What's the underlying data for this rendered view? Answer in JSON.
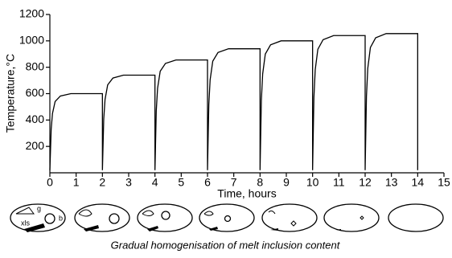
{
  "chart_data": {
    "type": "line",
    "xlabel": "Time, hours",
    "ylabel": "Temperature,°C",
    "x": [
      0,
      0.05,
      0.1,
      0.2,
      0.4,
      0.8,
      2,
      2,
      2.05,
      2.1,
      2.2,
      2.4,
      2.8,
      4,
      4,
      4.05,
      4.1,
      4.2,
      4.4,
      4.8,
      6,
      6,
      6.05,
      6.1,
      6.2,
      6.4,
      6.8,
      8,
      8,
      8.05,
      8.1,
      8.2,
      8.4,
      8.8,
      10,
      10,
      10.05,
      10.1,
      10.2,
      10.4,
      10.8,
      12,
      12,
      12.05,
      12.1,
      12.2,
      12.4,
      12.8,
      14,
      14
    ],
    "series": [
      {
        "color": "#000000",
        "values": [
          20,
          330,
          450,
          540,
          582,
          600,
          600,
          20,
          407,
          555,
          666,
          718,
          740,
          740,
          20,
          470,
          641,
          770,
          829,
          855,
          855,
          20,
          517,
          705,
          846,
          912,
          940,
          940,
          20,
          550,
          750,
          900,
          970,
          1000,
          1000,
          20,
          572,
          780,
          936,
          1009,
          1040,
          1040,
          20,
          580,
          791,
          950,
          1023,
          1055,
          1055,
          20
        ]
      }
    ],
    "xlim": [
      0,
      15
    ],
    "xticks": [
      0,
      1,
      2,
      3,
      4,
      5,
      6,
      7,
      8,
      9,
      10,
      11,
      12,
      13,
      14,
      15
    ],
    "ylim": [
      0,
      1200
    ],
    "yticks": [
      200,
      400,
      600,
      800,
      1000,
      1200
    ],
    "grid": false
  },
  "diagram_labels": [
    "xls",
    "g",
    "b"
  ],
  "caption": "Gradual homogenisation of melt inclusion content"
}
